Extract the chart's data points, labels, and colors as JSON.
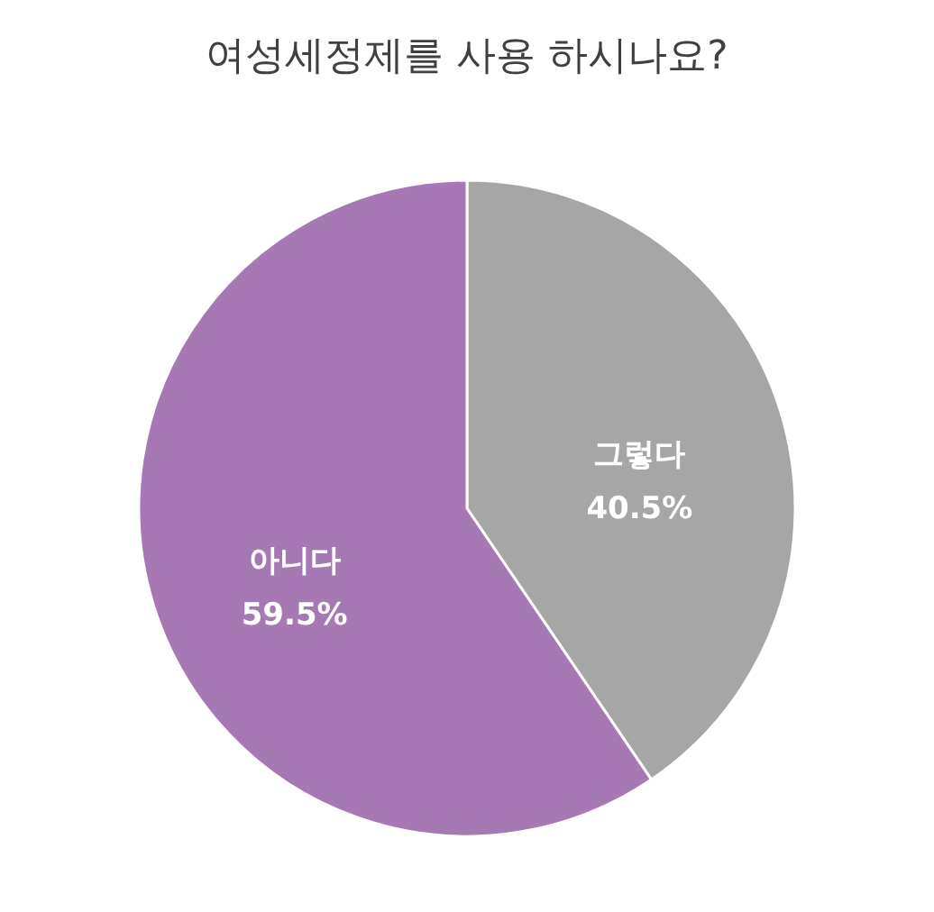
{
  "chart_data": {
    "type": "pie",
    "title": "여성세정제를 사용 하시나요?",
    "categories": [
      "그렇다",
      "아니다"
    ],
    "values": [
      40.5,
      59.5
    ],
    "colors": [
      "#a6a6a6",
      "#a678b4"
    ],
    "value_labels": [
      "40.5%",
      "59.5%"
    ],
    "legend": false
  }
}
